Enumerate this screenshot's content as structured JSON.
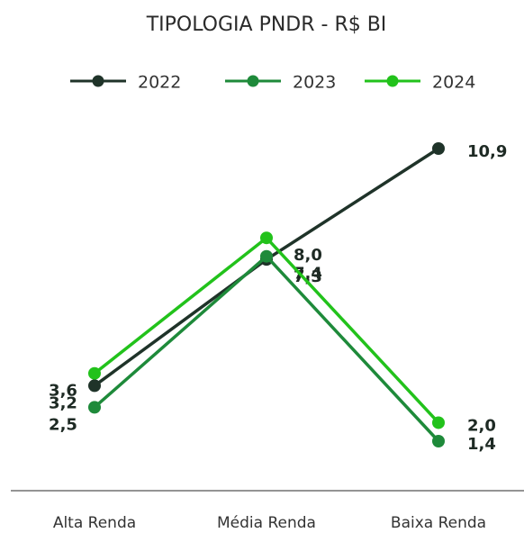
{
  "chart_data": {
    "type": "line",
    "title": "TIPOLOGIA PNDR - R$ BI",
    "categories": [
      "Alta Renda",
      "Média Renda",
      "Baixa Renda"
    ],
    "series": [
      {
        "name": "2022",
        "color": "#1f3329",
        "values": [
          3.2,
          7.3,
          10.9
        ],
        "value_labels": [
          "3,2",
          "7,3",
          "10,9"
        ]
      },
      {
        "name": "2023",
        "color": "#1e8a3a",
        "values": [
          2.5,
          7.4,
          1.4
        ],
        "value_labels": [
          "2,5",
          "7,4",
          "1,4"
        ]
      },
      {
        "name": "2024",
        "color": "#22c21b",
        "values": [
          3.6,
          8.0,
          2.0
        ],
        "value_labels": [
          "3,6",
          "8,0",
          "2,0"
        ]
      }
    ],
    "legend": "top"
  }
}
